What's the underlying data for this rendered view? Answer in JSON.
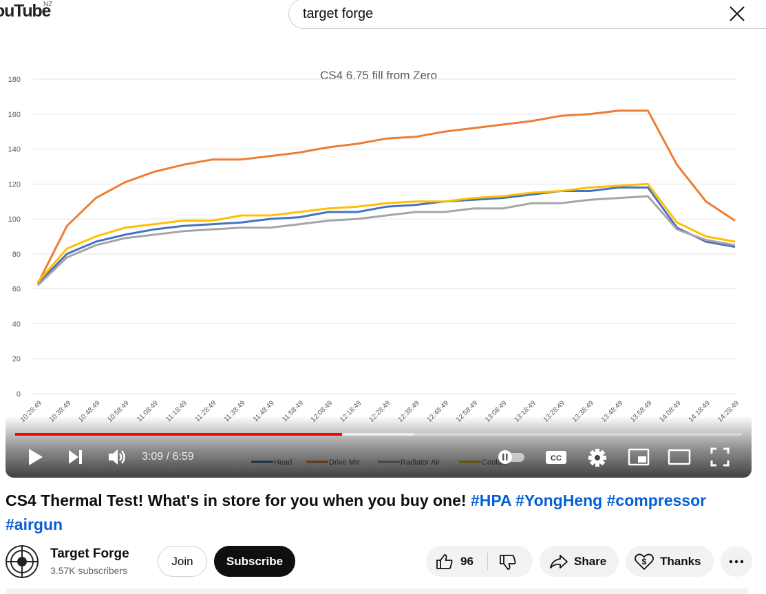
{
  "header": {
    "logo_text": "ouTube",
    "region": "NZ",
    "search_value": "target forge"
  },
  "player": {
    "time_display": "3:09 / 6:59",
    "progress_fraction": 0.45
  },
  "chart_data": {
    "type": "line",
    "title": "CS4 6.75 fill from Zero",
    "ylim": [
      0,
      180
    ],
    "yticks": [
      "0",
      "20",
      "40",
      "60",
      "80",
      "100",
      "120",
      "140",
      "160",
      "180"
    ],
    "x": [
      "10:28:49",
      "10:38:49",
      "10:48:49",
      "10:58:49",
      "11:08:49",
      "11:18:49",
      "11:28:49",
      "11:38:49",
      "11:48:49",
      "11:58:49",
      "12:08:49",
      "12:18:49",
      "12:28:49",
      "12:38:49",
      "12:48:49",
      "12:58:49",
      "13:08:49",
      "13:18:49",
      "13:28:49",
      "13:38:49",
      "13:48:49",
      "13:58:49",
      "14:08:49",
      "14:18:49",
      "14:28:49"
    ],
    "series": [
      {
        "name": "Head",
        "color": "#4472c4",
        "values": [
          63,
          80,
          87,
          91,
          94,
          96,
          97,
          98,
          100,
          101,
          104,
          104,
          107,
          108,
          110,
          111,
          112,
          114,
          116,
          116,
          118,
          118,
          95,
          87,
          84
        ]
      },
      {
        "name": "Drive Mtr",
        "color": "#ed7d31",
        "values": [
          63,
          96,
          112,
          121,
          127,
          131,
          134,
          134,
          136,
          138,
          141,
          143,
          146,
          147,
          150,
          152,
          154,
          156,
          159,
          160,
          162,
          162,
          131,
          110,
          99
        ]
      },
      {
        "name": "Radiator Air",
        "color": "#a5a5a5",
        "values": [
          62,
          78,
          85,
          89,
          91,
          93,
          94,
          95,
          95,
          97,
          99,
          100,
          102,
          104,
          104,
          106,
          106,
          109,
          109,
          111,
          112,
          113,
          94,
          88,
          85
        ]
      },
      {
        "name": "Coolant",
        "color": "#ffc000",
        "values": [
          64,
          83,
          90,
          95,
          97,
          99,
          99,
          102,
          102,
          104,
          106,
          107,
          109,
          110,
          110,
          112,
          113,
          115,
          116,
          118,
          119,
          120,
          98,
          90,
          87
        ]
      }
    ],
    "legend_labels": [
      "Head",
      "Drive Mtr",
      "Radiator Air",
      "Coola..."
    ],
    "legend_position": "bottom",
    "grid": true
  },
  "video": {
    "title_prefix": "CS4 Thermal Test! What's in store for you when you buy one! ",
    "hashtags": [
      "#HPA",
      "#YongHeng",
      "#compressor",
      "#airgun"
    ]
  },
  "channel": {
    "name": "Target Forge",
    "subscribers": "3.57K subscribers",
    "join_label": "Join",
    "subscribe_label": "Subscribe"
  },
  "actions": {
    "like_count": "96",
    "share_label": "Share",
    "thanks_label": "Thanks"
  }
}
